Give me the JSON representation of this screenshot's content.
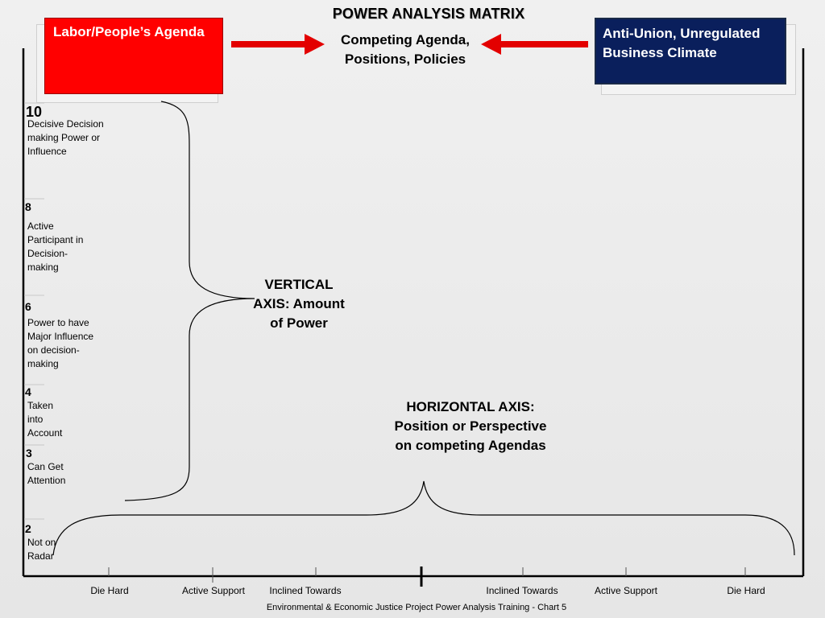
{
  "title": "POWER ANALYSIS MATRIX",
  "left_box": {
    "text": "Labor/People’s Agenda",
    "color": "#ff0000"
  },
  "right_box": {
    "text": "Anti-Union, Unregulated Business Climate",
    "color": "#0a1f5c"
  },
  "center_label": "Competing Agenda, Positions, Policies",
  "vertical_axis_label": "VERTICAL AXIS: Amount of Power",
  "horizontal_axis_label": "HORIZONTAL AXIS: Position or Perspective on competing Agendas",
  "levels": [
    {
      "num": "10",
      "desc": "Decisive Decision making Power or Influence"
    },
    {
      "num": "8",
      "desc": "Active Participant in Decision-making"
    },
    {
      "num": "6",
      "desc": "Power to have Major Influence on decision-making"
    },
    {
      "num": "4",
      "desc": "Taken into Account"
    },
    {
      "num": "3",
      "desc": "Can Get Attention"
    },
    {
      "num": "2",
      "desc": "Not on Radar"
    }
  ],
  "x_labels": [
    "Die Hard",
    "Active Support",
    "Inclined Towards",
    "Inclined Towards",
    "Active Support",
    "Die Hard"
  ],
  "footer": "Environmental & Economic Justice Project Power Analysis Training - Chart 5",
  "arrow_color": "#e30000"
}
